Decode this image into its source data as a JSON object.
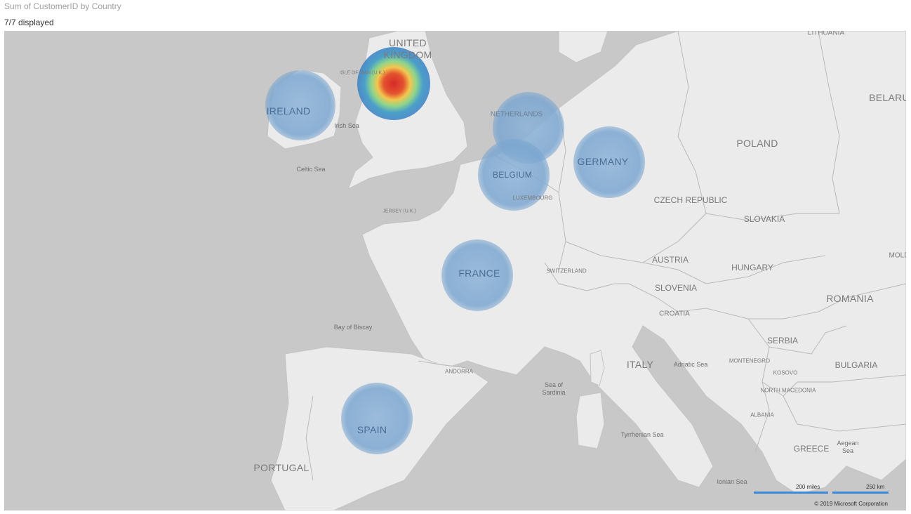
{
  "header": {
    "title": "Sum of CustomerID by Country",
    "displayed": "7/7 displayed"
  },
  "colors": {
    "water": "#c8c8c8",
    "land": "#ebebeb",
    "border": "#b9b9b9",
    "bubble": "#7ba6d0",
    "heat": [
      "#d62a2a",
      "#f3c74f",
      "#8fd58b",
      "#3a80c4"
    ],
    "scale_bar": "#3d88d8"
  },
  "map": {
    "bubbles": [
      {
        "country": "UNITED KINGDOM",
        "style": "heat"
      },
      {
        "country": "IRELAND",
        "label": "IRELAND",
        "style": "bubble"
      },
      {
        "country": "NETHERLANDS",
        "style": "bubble"
      },
      {
        "country": "BELGIUM",
        "label": "BELGIUM",
        "style": "bubble"
      },
      {
        "country": "GERMANY",
        "label": "GERMANY",
        "style": "bubble"
      },
      {
        "country": "FRANCE",
        "label": "FRANCE",
        "style": "bubble"
      },
      {
        "country": "SPAIN",
        "label": "SPAIN",
        "style": "bubble"
      }
    ],
    "labels": {
      "uk_line1": "UNITED",
      "uk_line2": "KINGDOM",
      "isle_of_man": "ISLE OF MAN (U.K.)",
      "irish_sea": "Irish Sea",
      "celtic_sea": "Celtic Sea",
      "netherlands": "NETHERLANDS",
      "luxembourg": "LUXEMBOURG",
      "jersey": "JERSEY (U.K.)",
      "bay_of_biscay": "Bay of Biscay",
      "portugal": "PORTUGAL",
      "andorra": "ANDORRA",
      "switzerland": "SWITZERLAND",
      "lithuania": "LITHUANIA",
      "belarus": "BELARU",
      "poland": "POLAND",
      "czech": "CZECH REPUBLIC",
      "slovakia": "SLOVAKIA",
      "austria": "AUSTRIA",
      "hungary": "HUNGARY",
      "slovenia": "SLOVENIA",
      "croatia": "CROATIA",
      "moldova": "MOLD",
      "romania": "ROMANIA",
      "serbia": "SERBIA",
      "montenegro": "MONTENEGRO",
      "kosovo": "KOSOVO",
      "bulgaria": "BULGARIA",
      "north_macedonia": "NORTH MACEDONIA",
      "albania": "ALBANIA",
      "greece": "GREECE",
      "aegean_line1": "Aegean",
      "aegean_line2": "Sea",
      "italy": "ITALY",
      "adriatic": "Adriatic Sea",
      "sardinia_line1": "Sea of",
      "sardinia_line2": "Sardinia",
      "tyrrhenian": "Tyrrhenian Sea",
      "ionian": "Ionian Sea"
    },
    "scale": {
      "miles": "200 miles",
      "km": "250 km"
    },
    "copyright": "© 2019 Microsoft Corporation"
  }
}
